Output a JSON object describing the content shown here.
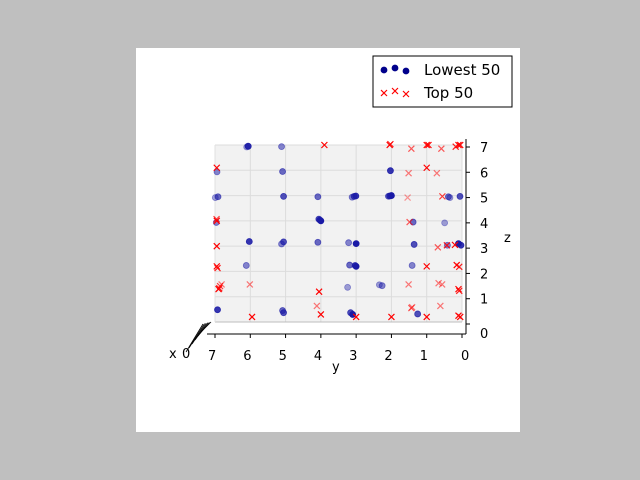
{
  "chart_data": {
    "type": "scatter",
    "projection": "3d",
    "view": "looking along the x axis; y decreases left-to-right, z increases upward",
    "xlabel": "x",
    "ylabel": "y",
    "zlabel": "z",
    "xlim": [
      0,
      7
    ],
    "ylim": [
      0,
      7
    ],
    "zlim": [
      0,
      7
    ],
    "y_ticks": [
      "7",
      "6",
      "5",
      "4",
      "3",
      "2",
      "1",
      "0"
    ],
    "z_ticks": [
      "0",
      "1",
      "2",
      "3",
      "4",
      "5",
      "6",
      "7"
    ],
    "x_ticks_visible": [
      "0"
    ],
    "grid": true,
    "legend_position": "top-right",
    "series": [
      {
        "name": "Lowest 50",
        "marker": "circle",
        "color": "#00008b",
        "points": [
          {
            "y": 5.98,
            "z": 7.0,
            "x": 3
          },
          {
            "y": 5.96,
            "z": 7.0,
            "x": 5
          },
          {
            "y": 6.0,
            "z": 6.98,
            "x": 2
          },
          {
            "y": 5.0,
            "z": 7.0,
            "x": 4
          },
          {
            "y": 6.83,
            "z": 6.0,
            "x": 4
          },
          {
            "y": 5.0,
            "z": 6.0,
            "x": 3
          },
          {
            "y": 2.0,
            "z": 6.0,
            "x": 1
          },
          {
            "y": 5.0,
            "z": 5.0,
            "x": 2
          },
          {
            "y": 6.83,
            "z": 5.0,
            "x": 3
          },
          {
            "y": 4.0,
            "z": 5.0,
            "x": 3
          },
          {
            "y": 3.0,
            "z": 5.0,
            "x": 2
          },
          {
            "y": 2.98,
            "z": 5.0,
            "x": 1
          },
          {
            "y": 2.0,
            "z": 5.0,
            "x": 0
          },
          {
            "y": 2.02,
            "z": 5.0,
            "x": 1
          },
          {
            "y": 0.2,
            "z": 5.0,
            "x": 5
          },
          {
            "y": 0.0,
            "z": 5.0,
            "x": 2
          },
          {
            "y": 6.85,
            "z": 4.0,
            "x": 4
          },
          {
            "y": 4.0,
            "z": 4.1,
            "x": 2
          },
          {
            "y": 4.0,
            "z": 4.0,
            "x": 0
          },
          {
            "y": 1.3,
            "z": 4.0,
            "x": 3
          },
          {
            "y": 0.35,
            "z": 4.0,
            "x": 5
          },
          {
            "y": 6.0,
            "z": 3.2,
            "x": 1
          },
          {
            "y": 5.0,
            "z": 3.2,
            "x": 2
          },
          {
            "y": 4.0,
            "z": 3.2,
            "x": 3
          },
          {
            "y": 3.1,
            "z": 3.2,
            "x": 4
          },
          {
            "y": 3.0,
            "z": 3.1,
            "x": 0
          },
          {
            "y": 1.3,
            "z": 3.1,
            "x": 2
          },
          {
            "y": 0.3,
            "z": 3.1,
            "x": 4
          },
          {
            "y": 0.1,
            "z": 3.1,
            "x": 0
          },
          {
            "y": 6.0,
            "z": 2.3,
            "x": 4
          },
          {
            "y": 3.1,
            "z": 2.3,
            "x": 3
          },
          {
            "y": 3.0,
            "z": 2.2,
            "x": 0
          },
          {
            "y": 1.3,
            "z": 2.3,
            "x": 4
          },
          {
            "y": 3.1,
            "z": 1.45,
            "x": 5
          },
          {
            "y": 2.2,
            "z": 1.55,
            "x": 5
          },
          {
            "y": 2.15,
            "z": 1.5,
            "x": 4
          },
          {
            "y": 6.9,
            "z": 0.5,
            "x": 1
          },
          {
            "y": 5.0,
            "z": 0.5,
            "x": 3
          },
          {
            "y": 5.0,
            "z": 0.4,
            "x": 2
          },
          {
            "y": 3.1,
            "z": 0.4,
            "x": 2
          },
          {
            "y": 3.1,
            "z": 0.3,
            "x": 0
          },
          {
            "y": 1.2,
            "z": 0.35,
            "x": 2
          },
          {
            "y": 0.0,
            "z": 3.05,
            "x": 1
          },
          {
            "y": 5.0,
            "z": 3.15,
            "x": 4
          },
          {
            "y": 0.3,
            "z": 5.0,
            "x": 3
          },
          {
            "y": 2.0,
            "z": 5.02,
            "x": 3
          },
          {
            "y": 3.0,
            "z": 5.0,
            "x": 4
          },
          {
            "y": 6.85,
            "z": 5.0,
            "x": 5
          },
          {
            "y": 4.0,
            "z": 4.05,
            "x": 1
          },
          {
            "y": 3.0,
            "z": 2.25,
            "x": 1
          }
        ]
      },
      {
        "name": "Top 50",
        "marker": "x",
        "color": "#ff0000",
        "points": [
          {
            "y": 3.9,
            "z": 7.0,
            "x": 0
          },
          {
            "y": 2.05,
            "z": 7.0,
            "x": 0
          },
          {
            "y": 1.0,
            "z": 7.0,
            "x": 0
          },
          {
            "y": 0.95,
            "z": 7.0,
            "x": 0
          },
          {
            "y": 0.1,
            "z": 7.0,
            "x": 0
          },
          {
            "y": 0.05,
            "z": 7.0,
            "x": 0
          },
          {
            "y": 1.35,
            "z": 6.9,
            "x": 3
          },
          {
            "y": 0.5,
            "z": 6.9,
            "x": 3
          },
          {
            "y": 6.95,
            "z": 6.1,
            "x": 0
          },
          {
            "y": 1.0,
            "z": 6.1,
            "x": 0
          },
          {
            "y": 1.4,
            "z": 5.95,
            "x": 4
          },
          {
            "y": 0.6,
            "z": 5.95,
            "x": 4
          },
          {
            "y": 0.5,
            "z": 5.0,
            "x": 2
          },
          {
            "y": 1.4,
            "z": 5.0,
            "x": 5
          },
          {
            "y": 6.95,
            "z": 4.0,
            "x": 0
          },
          {
            "y": 1.4,
            "z": 4.0,
            "x": 3
          },
          {
            "y": 6.95,
            "z": 3.0,
            "x": 0
          },
          {
            "y": 0.6,
            "z": 3.0,
            "x": 3
          },
          {
            "y": 0.4,
            "z": 3.05,
            "x": 1
          },
          {
            "y": 0.2,
            "z": 3.05,
            "x": 0
          },
          {
            "y": 1.0,
            "z": 2.2,
            "x": 0
          },
          {
            "y": 0.15,
            "z": 2.25,
            "x": 0
          },
          {
            "y": 0.05,
            "z": 2.2,
            "x": 1
          },
          {
            "y": 6.95,
            "z": 2.2,
            "x": 0
          },
          {
            "y": 6.9,
            "z": 2.15,
            "x": 1
          },
          {
            "y": 6.9,
            "z": 1.3,
            "x": 0
          },
          {
            "y": 6.85,
            "z": 1.35,
            "x": 1
          },
          {
            "y": 6.8,
            "z": 1.45,
            "x": 2
          },
          {
            "y": 6.7,
            "z": 1.55,
            "x": 4
          },
          {
            "y": 5.9,
            "z": 1.55,
            "x": 4
          },
          {
            "y": 0.45,
            "z": 1.55,
            "x": 4
          },
          {
            "y": 1.4,
            "z": 1.55,
            "x": 4
          },
          {
            "y": 4.05,
            "z": 1.2,
            "x": 0
          },
          {
            "y": 0.1,
            "z": 1.3,
            "x": 0
          },
          {
            "y": 0.05,
            "z": 1.25,
            "x": 1
          },
          {
            "y": 0.55,
            "z": 1.6,
            "x": 4
          },
          {
            "y": 1.35,
            "z": 0.6,
            "x": 3
          },
          {
            "y": 4.0,
            "z": 0.7,
            "x": 4
          },
          {
            "y": 0.5,
            "z": 0.7,
            "x": 4
          },
          {
            "y": 1.3,
            "z": 0.65,
            "x": 4
          },
          {
            "y": 4.0,
            "z": 0.3,
            "x": 0
          },
          {
            "y": 5.95,
            "z": 0.2,
            "x": 0
          },
          {
            "y": 3.0,
            "z": 0.2,
            "x": 0
          },
          {
            "y": 2.0,
            "z": 0.2,
            "x": 0
          },
          {
            "y": 1.0,
            "z": 0.2,
            "x": 0
          },
          {
            "y": 0.1,
            "z": 0.25,
            "x": 0
          },
          {
            "y": 0.05,
            "z": 0.2,
            "x": 0
          },
          {
            "y": 2.0,
            "z": 7.05,
            "x": 1
          },
          {
            "y": 0.15,
            "z": 6.95,
            "x": 1
          },
          {
            "y": 6.9,
            "z": 4.1,
            "x": 2
          }
        ]
      }
    ]
  }
}
